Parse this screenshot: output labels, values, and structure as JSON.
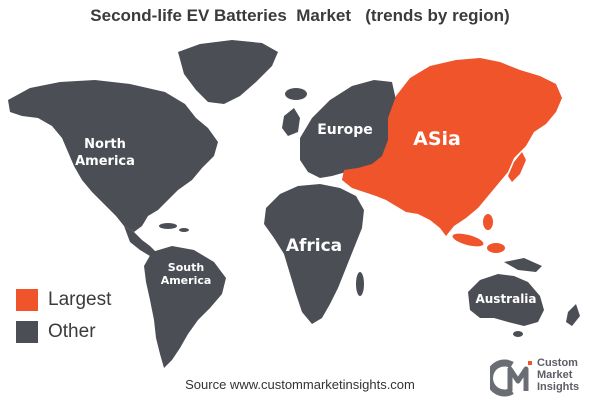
{
  "title": "Second-life EV Batteries  Market   (trends by region)",
  "regions": {
    "north_america": {
      "line1": "North",
      "line2": "America",
      "status": "Other"
    },
    "south_america": {
      "line1": "South",
      "line2": "America",
      "status": "Other"
    },
    "europe": {
      "label": "Europe",
      "status": "Other"
    },
    "africa": {
      "label": "Africa",
      "status": "Other"
    },
    "asia": {
      "label": "ASia",
      "status": "Largest"
    },
    "australia": {
      "label": "Australia",
      "status": "Other"
    }
  },
  "legend": [
    {
      "label": "Largest",
      "color": "#f0542b"
    },
    {
      "label": "Other",
      "color": "#4c4e55"
    }
  ],
  "source": "Source www.custommarketinsights.com",
  "logo": {
    "line1": "Custom",
    "line2": "Market",
    "line3": "Insights"
  },
  "colors": {
    "largest": "#f0542b",
    "other": "#4c4e55",
    "background": "#ffffff"
  }
}
